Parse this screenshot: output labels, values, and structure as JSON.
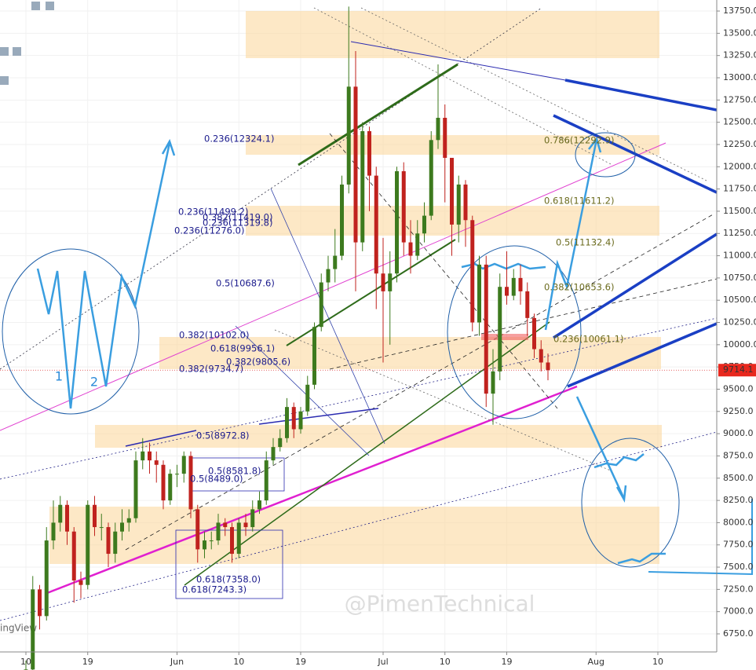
{
  "chart_data": {
    "type": "candlestick",
    "categories": [
      "10",
      null,
      null,
      null,
      null,
      null,
      null,
      null,
      null,
      "19",
      null,
      null,
      null,
      null,
      null,
      null,
      null,
      null,
      null,
      null,
      null,
      null,
      "Jun",
      null,
      null,
      null,
      null,
      null,
      null,
      null,
      null,
      "10",
      null,
      null,
      null,
      null,
      null,
      null,
      null,
      null,
      "19",
      null,
      null,
      null,
      null,
      null,
      null,
      null,
      null,
      null,
      null,
      null,
      "Jul",
      null,
      null,
      null,
      null,
      null,
      null,
      null,
      null,
      "10",
      null,
      null,
      null,
      null,
      null,
      null,
      null,
      null,
      "19",
      null,
      null,
      null,
      null,
      null,
      null,
      null,
      null,
      null,
      null,
      null,
      null,
      "Aug",
      null,
      null,
      null,
      null,
      null,
      null,
      null,
      null,
      "10",
      null,
      null,
      null,
      null,
      null,
      null,
      null,
      null,
      null,
      null
    ],
    "open": [
      6200,
      6350,
      7250,
      6950,
      7800,
      8000,
      8200,
      7900,
      7350,
      7300,
      8200,
      7950,
      7950,
      7650,
      7900,
      8000,
      8050,
      8700,
      8800,
      8700,
      8650,
      8250,
      8550,
      8550,
      8750,
      8150,
      7700,
      7800,
      7800,
      8000,
      7950,
      7650,
      8000,
      7950,
      8150,
      8250,
      8700,
      8850,
      8950,
      9300,
      9050,
      9250,
      9550,
      10200,
      10700,
      10850,
      11000,
      11800,
      12900,
      11150,
      12400,
      11900,
      10800,
      10600,
      10800,
      11950,
      11150,
      11000,
      11250,
      11450,
      12300,
      12550,
      12100,
      11350,
      11800,
      11400,
      10250,
      10900,
      9450,
      9700,
      10650,
      10550,
      10750,
      10600,
      10300,
      9950,
      9800,
      null,
      null,
      null,
      null,
      null,
      null,
      null,
      null,
      null,
      null,
      null,
      null,
      null,
      null,
      null,
      null,
      null,
      null,
      null,
      null,
      null,
      null,
      null,
      null,
      null,
      null
    ],
    "high": [
      6450,
      7400,
      7300,
      7950,
      8250,
      8300,
      8250,
      7950,
      7450,
      8250,
      8300,
      8100,
      8000,
      8000,
      8150,
      8150,
      8800,
      8950,
      8900,
      8800,
      8700,
      8600,
      8650,
      8800,
      8800,
      8200,
      7900,
      7900,
      8100,
      8050,
      8000,
      8050,
      8100,
      8250,
      8350,
      8800,
      8950,
      9050,
      9400,
      9350,
      9300,
      9650,
      10250,
      10800,
      11000,
      11300,
      11900,
      13800,
      13300,
      12500,
      12450,
      12000,
      11200,
      11050,
      12000,
      12050,
      11400,
      11400,
      11600,
      12400,
      13150,
      12700,
      12100,
      11900,
      11850,
      11450,
      11000,
      11000,
      9950,
      10800,
      11050,
      10850,
      10900,
      10700,
      10350,
      10050,
      9900,
      null,
      null,
      null,
      null,
      null,
      null,
      null,
      null,
      null,
      null,
      null,
      null,
      null,
      null,
      null,
      null,
      null,
      null,
      null,
      null,
      null,
      null,
      null,
      null,
      null,
      null
    ],
    "low": [
      6150,
      6300,
      6800,
      6900,
      7700,
      7900,
      7750,
      7100,
      7150,
      7250,
      7850,
      7800,
      7500,
      7550,
      7800,
      7900,
      8000,
      8600,
      8550,
      8450,
      8150,
      8200,
      8400,
      8450,
      8050,
      7550,
      7600,
      7700,
      7750,
      7850,
      7550,
      7600,
      7850,
      7900,
      8100,
      8200,
      8650,
      8800,
      8900,
      8950,
      9000,
      9200,
      9500,
      10150,
      10600,
      10700,
      10950,
      11700,
      10600,
      11050,
      11500,
      10400,
      9800,
      10000,
      10700,
      11000,
      10800,
      10950,
      11150,
      11400,
      12200,
      11600,
      11000,
      11150,
      11100,
      10150,
      10100,
      9300,
      9100,
      9600,
      10450,
      10500,
      10450,
      10100,
      9850,
      9700,
      9600,
      null,
      null,
      null,
      null,
      null,
      null,
      null,
      null,
      null,
      null,
      null,
      null,
      null,
      null,
      null,
      null,
      null,
      null,
      null,
      null,
      null,
      null,
      null,
      null,
      null,
      null
    ],
    "close": [
      6350,
      7250,
      6950,
      7800,
      8000,
      8200,
      7900,
      7350,
      7300,
      8200,
      7950,
      7950,
      7650,
      7900,
      8000,
      8050,
      8700,
      8800,
      8700,
      8650,
      8250,
      8550,
      8550,
      8750,
      8150,
      7700,
      7800,
      7800,
      8000,
      7950,
      7650,
      8000,
      7950,
      8150,
      8250,
      8700,
      8850,
      8950,
      9300,
      9050,
      9250,
      9550,
      10200,
      10700,
      10850,
      11000,
      11800,
      12900,
      11150,
      12400,
      11900,
      10800,
      10600,
      10800,
      11950,
      11150,
      11000,
      11250,
      11450,
      12300,
      12550,
      12100,
      11350,
      11800,
      11400,
      10250,
      10900,
      9450,
      9700,
      10650,
      10550,
      10750,
      10600,
      10300,
      9950,
      9800,
      9714.1,
      null,
      null,
      null,
      null,
      null,
      null,
      null,
      null,
      null,
      null,
      null,
      null,
      null,
      null,
      null,
      null,
      null,
      null,
      null,
      null,
      null,
      null,
      null,
      null,
      null,
      null
    ],
    "up_color": "#3d7a1e",
    "down_color": "#c0221e",
    "ylim": [
      6344,
      13874
    ],
    "yticks": [
      {
        "value": 6750,
        "label": "6750.0"
      },
      {
        "value": 7000,
        "label": "7000.0"
      },
      {
        "value": 7250,
        "label": "7250.0"
      },
      {
        "value": 7500,
        "label": "7500.0"
      },
      {
        "value": 7750,
        "label": "7750.0"
      },
      {
        "value": 8000,
        "label": "8000.0"
      },
      {
        "value": 8250,
        "label": "8250.0"
      },
      {
        "value": 8500,
        "label": "8500.0"
      },
      {
        "value": 8750,
        "label": "8750.0"
      },
      {
        "value": 9000,
        "label": "9000.0"
      },
      {
        "value": 9250,
        "label": "9250.0"
      },
      {
        "value": 9500,
        "label": "9500.0"
      },
      {
        "value": 9750,
        "label": "9750.0"
      },
      {
        "value": 10000,
        "label": "10000.0"
      },
      {
        "value": 10250,
        "label": "10250.0"
      },
      {
        "value": 10500,
        "label": "10500.0"
      },
      {
        "value": 10750,
        "label": "10750.0"
      },
      {
        "value": 11000,
        "label": "11000.0"
      },
      {
        "value": 11250,
        "label": "11250.0"
      },
      {
        "value": 11500,
        "label": "11500.0"
      },
      {
        "value": 11750,
        "label": "11750.0"
      },
      {
        "value": 12000,
        "label": "12000.0"
      },
      {
        "value": 12250,
        "label": "12250.0"
      },
      {
        "value": 12500,
        "label": "12500.0"
      },
      {
        "value": 12750,
        "label": "12750.0"
      },
      {
        "value": 13000,
        "label": "13000.0"
      },
      {
        "value": 13250,
        "label": "13250.0"
      },
      {
        "value": 13500,
        "label": "13500.0"
      },
      {
        "value": 13750,
        "label": "13750.0"
      }
    ],
    "grid": true,
    "last_price_label": "9714.1",
    "fib_labels_left": [
      "0.236(12324.1)",
      "0.236(11499.2)",
      "0.382(11419.0)",
      "0.236(11319.8)",
      "0.236(11276.0)",
      "0.5(10687.6)",
      "0.382(10102.0)",
      "0.618(9956.1)",
      "0.382(9805.6)",
      "0.382(9734.7)",
      "0.5(8972.8)",
      "0.5(8581.8)",
      "0.5(8489.0)",
      "0.618(7358.0)",
      "0.618(7243.3)"
    ],
    "fib_labels_right": [
      "0.786(12292.9)",
      "0.618(11611.2)",
      "0.5(11132.4)",
      "0.382(10653.6)",
      "0.236(10061.1)"
    ],
    "wave_labels": [
      "1",
      "2"
    ],
    "watermark": "@PimenTechnical",
    "watermark_fragment": "ingView"
  }
}
